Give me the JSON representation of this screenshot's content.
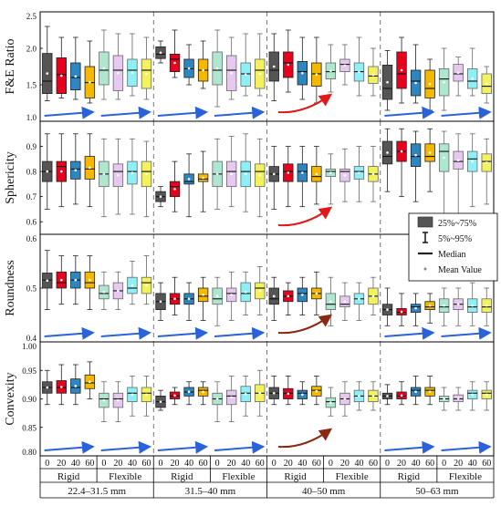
{
  "chart_data": {
    "type": "boxplot",
    "shared_x": {
      "ticks": [
        "0",
        "20",
        "40",
        "60"
      ],
      "groups": [
        "Rigid",
        "Flexible"
      ],
      "size_ranges": [
        "22.4–31.5 mm",
        "31.5–40 mm",
        "40–50 mm",
        "50–63 mm"
      ]
    },
    "colors": {
      "rigid": [
        "#555555",
        "#e8001c",
        "#2e86c1",
        "#f5b800"
      ],
      "flexible": [
        "#aee6cf",
        "#e6c8f0",
        "#8ef0f7",
        "#f2f25e"
      ],
      "trend_blue": "#2a63d9",
      "trend_red": "#e01a1a",
      "trend_brown": "#8b2a12"
    },
    "legend": {
      "items": [
        {
          "label": "25%~75%",
          "symbol": "box"
        },
        {
          "label": "5%~95%",
          "symbol": "whisker"
        },
        {
          "label": "Median",
          "symbol": "line"
        },
        {
          "label": "Mean Value",
          "symbol": "dot"
        }
      ]
    },
    "panels": [
      {
        "ylabel": "F&E Ratio",
        "ylim": [
          1.0,
          2.5
        ],
        "yticks": [
          "1.0",
          "1.5",
          "2.0",
          "2.5"
        ],
        "arrows": [
          "blue",
          "blue",
          "red",
          "blue"
        ],
        "boxes": [
          [
            [
              1.28,
              1.38,
              1.55,
              1.93,
              2.3
            ],
            [
              1.32,
              1.38,
              1.64,
              1.87,
              2.15
            ],
            [
              1.3,
              1.43,
              1.6,
              1.8,
              2.15
            ],
            [
              1.25,
              1.32,
              1.53,
              1.75,
              2.1
            ]
          ],
          [
            [
              1.3,
              1.5,
              1.7,
              1.95,
              2.25
            ],
            [
              1.3,
              1.42,
              1.7,
              1.9,
              2.2
            ],
            [
              1.35,
              1.48,
              1.7,
              1.85,
              2.2
            ],
            [
              1.3,
              1.45,
              1.7,
              1.85,
              2.15
            ]
          ],
          [
            [
              1.8,
              1.86,
              1.92,
              2.02,
              2.1
            ],
            [
              1.6,
              1.68,
              1.85,
              1.92,
              2.25
            ],
            [
              1.5,
              1.6,
              1.72,
              1.85,
              2.05
            ],
            [
              1.45,
              1.55,
              1.7,
              1.85,
              2.1
            ]
          ],
          [
            [
              1.2,
              1.5,
              1.7,
              1.95,
              2.25
            ],
            [
              1.3,
              1.42,
              1.7,
              1.9,
              2.15
            ],
            [
              1.35,
              1.48,
              1.65,
              1.8,
              2.2
            ],
            [
              1.35,
              1.45,
              1.7,
              1.85,
              2.2
            ]
          ],
          [
            [
              1.28,
              1.55,
              1.7,
              1.95,
              2.2
            ],
            [
              1.4,
              1.6,
              1.8,
              1.95,
              2.25
            ],
            [
              1.3,
              1.5,
              1.68,
              1.82,
              2.15
            ],
            [
              1.25,
              1.48,
              1.65,
              1.8,
              2.15
            ]
          ],
          [
            [
              1.4,
              1.58,
              1.68,
              1.8,
              2.05
            ],
            [
              1.5,
              1.68,
              1.78,
              1.85,
              2.05
            ],
            [
              1.35,
              1.55,
              1.68,
              1.8,
              2.15
            ],
            [
              1.35,
              1.52,
              1.62,
              1.75,
              2.0
            ]
          ],
          [
            [
              1.15,
              1.3,
              1.45,
              1.77,
              1.97
            ],
            [
              1.25,
              1.45,
              1.65,
              1.95,
              2.15
            ],
            [
              1.25,
              1.35,
              1.55,
              1.7,
              2.05
            ],
            [
              1.15,
              1.32,
              1.45,
              1.7,
              1.85
            ]
          ],
          [
            [
              1.15,
              1.35,
              1.58,
              1.72,
              2.0
            ],
            [
              1.35,
              1.55,
              1.65,
              1.78,
              1.88
            ],
            [
              1.35,
              1.45,
              1.55,
              1.72,
              2.0
            ],
            [
              1.25,
              1.38,
              1.48,
              1.65,
              1.75
            ]
          ]
        ]
      },
      {
        "ylabel": "Sphericity",
        "ylim": [
          0.55,
          1.0
        ],
        "yticks": [
          "0.6",
          "0.7",
          "0.8",
          "0.9"
        ],
        "arrows": [
          "none",
          "none",
          "red",
          "none"
        ],
        "boxes": [
          [
            [
              0.65,
              0.76,
              0.8,
              0.84,
              0.95
            ],
            [
              0.66,
              0.76,
              0.82,
              0.84,
              0.95
            ],
            [
              0.67,
              0.77,
              0.81,
              0.84,
              0.95
            ],
            [
              0.66,
              0.77,
              0.81,
              0.86,
              0.95
            ]
          ],
          [
            [
              0.62,
              0.74,
              0.79,
              0.84,
              0.93
            ],
            [
              0.63,
              0.74,
              0.8,
              0.83,
              0.93
            ],
            [
              0.63,
              0.75,
              0.8,
              0.84,
              0.93
            ],
            [
              0.62,
              0.74,
              0.8,
              0.84,
              0.92
            ]
          ],
          [
            [
              0.66,
              0.68,
              0.7,
              0.72,
              0.74
            ],
            [
              0.64,
              0.7,
              0.74,
              0.76,
              0.84
            ],
            [
              0.62,
              0.75,
              0.76,
              0.79,
              0.87
            ],
            [
              0.64,
              0.76,
              0.77,
              0.79,
              0.88
            ]
          ],
          [
            [
              0.65,
              0.74,
              0.79,
              0.84,
              0.93
            ],
            [
              0.66,
              0.74,
              0.8,
              0.84,
              0.94
            ],
            [
              0.64,
              0.74,
              0.8,
              0.84,
              0.95
            ],
            [
              0.62,
              0.74,
              0.8,
              0.83,
              0.93
            ]
          ],
          [
            [
              0.65,
              0.76,
              0.79,
              0.82,
              0.9
            ],
            [
              0.66,
              0.76,
              0.8,
              0.83,
              0.9
            ],
            [
              0.66,
              0.76,
              0.8,
              0.83,
              0.9
            ],
            [
              0.67,
              0.76,
              0.78,
              0.82,
              0.9
            ]
          ],
          [
            [
              0.67,
              0.78,
              0.8,
              0.81,
              0.87
            ],
            [
              0.68,
              0.76,
              0.8,
              0.81,
              0.89
            ],
            [
              0.68,
              0.77,
              0.8,
              0.82,
              0.9
            ],
            [
              0.68,
              0.76,
              0.79,
              0.82,
              0.9
            ]
          ],
          [
            [
              0.72,
              0.83,
              0.86,
              0.92,
              0.97
            ],
            [
              0.7,
              0.84,
              0.88,
              0.92,
              0.97
            ],
            [
              0.68,
              0.82,
              0.86,
              0.91,
              0.96
            ],
            [
              0.72,
              0.84,
              0.86,
              0.91,
              0.97
            ]
          ],
          [
            [
              0.62,
              0.8,
              0.88,
              0.91,
              0.96
            ],
            [
              0.62,
              0.81,
              0.84,
              0.88,
              0.95
            ],
            [
              0.66,
              0.8,
              0.85,
              0.88,
              0.95
            ],
            [
              0.67,
              0.8,
              0.84,
              0.87,
              0.93
            ]
          ]
        ]
      },
      {
        "ylabel": "Roundness",
        "ylim": [
          0.4,
          0.6
        ],
        "yticks": [
          "0.4",
          "0.5",
          "0.6"
        ],
        "arrows": [
          "blue",
          "blue",
          "brown",
          "blue"
        ],
        "boxes": [
          [
            [
              0.46,
              0.5,
              0.515,
              0.528,
              0.57
            ],
            [
              0.47,
              0.5,
              0.51,
              0.53,
              0.56
            ],
            [
              0.47,
              0.5,
              0.515,
              0.53,
              0.56
            ],
            [
              0.46,
              0.5,
              0.51,
              0.53,
              0.56
            ]
          ],
          [
            [
              0.46,
              0.48,
              0.49,
              0.505,
              0.53
            ],
            [
              0.46,
              0.48,
              0.495,
              0.51,
              0.53
            ],
            [
              0.47,
              0.49,
              0.5,
              0.52,
              0.55
            ],
            [
              0.47,
              0.49,
              0.51,
              0.52,
              0.56
            ]
          ],
          [
            [
              0.44,
              0.46,
              0.475,
              0.49,
              0.51
            ],
            [
              0.45,
              0.47,
              0.48,
              0.49,
              0.52
            ],
            [
              0.44,
              0.47,
              0.48,
              0.49,
              0.51
            ],
            [
              0.44,
              0.475,
              0.485,
              0.5,
              0.52
            ]
          ],
          [
            [
              0.43,
              0.47,
              0.48,
              0.5,
              0.52
            ],
            [
              0.44,
              0.475,
              0.49,
              0.5,
              0.53
            ],
            [
              0.45,
              0.475,
              0.49,
              0.51,
              0.53
            ],
            [
              0.45,
              0.48,
              0.5,
              0.51,
              0.54
            ]
          ],
          [
            [
              0.44,
              0.47,
              0.48,
              0.5,
              0.52
            ],
            [
              0.45,
              0.475,
              0.485,
              0.495,
              0.51
            ],
            [
              0.45,
              0.475,
              0.49,
              0.5,
              0.52
            ],
            [
              0.45,
              0.48,
              0.49,
              0.5,
              0.53
            ]
          ],
          [
            [
              0.43,
              0.46,
              0.47,
              0.49,
              0.52
            ],
            [
              0.44,
              0.465,
              0.47,
              0.485,
              0.51
            ],
            [
              0.44,
              0.47,
              0.48,
              0.49,
              0.51
            ],
            [
              0.45,
              0.47,
              0.485,
              0.5,
              0.52
            ]
          ],
          [
            [
              0.43,
              0.45,
              0.46,
              0.47,
              0.5
            ],
            [
              0.43,
              0.45,
              0.455,
              0.462,
              0.49
            ],
            [
              0.43,
              0.455,
              0.465,
              0.47,
              0.49
            ],
            [
              0.435,
              0.46,
              0.465,
              0.475,
              0.49
            ]
          ],
          [
            [
              0.43,
              0.455,
              0.465,
              0.48,
              0.5
            ],
            [
              0.43,
              0.46,
              0.47,
              0.48,
              0.5
            ],
            [
              0.43,
              0.455,
              0.465,
              0.48,
              0.51
            ],
            [
              0.43,
              0.455,
              0.465,
              0.48,
              0.5
            ]
          ]
        ]
      },
      {
        "ylabel": "Convexity",
        "ylim": [
          0.8,
          1.0
        ],
        "yticks": [
          "0.80",
          "0.85",
          "0.90",
          "0.95",
          "1.00"
        ],
        "arrows": [
          "blue",
          "blue",
          "brown",
          "blue"
        ],
        "boxes": [
          [
            [
              0.89,
              0.91,
              0.92,
              0.93,
              0.95
            ],
            [
              0.89,
              0.91,
              0.92,
              0.932,
              0.96
            ],
            [
              0.89,
              0.91,
              0.92,
              0.935,
              0.96
            ],
            [
              0.9,
              0.918,
              0.928,
              0.942,
              0.965
            ]
          ],
          [
            [
              0.86,
              0.885,
              0.9,
              0.91,
              0.93
            ],
            [
              0.86,
              0.885,
              0.9,
              0.91,
              0.93
            ],
            [
              0.87,
              0.895,
              0.91,
              0.92,
              0.94
            ],
            [
              0.87,
              0.895,
              0.91,
              0.92,
              0.94
            ]
          ],
          [
            [
              0.88,
              0.885,
              0.895,
              0.905,
              0.915
            ],
            [
              0.89,
              0.9,
              0.905,
              0.912,
              0.92
            ],
            [
              0.89,
              0.905,
              0.912,
              0.92,
              0.93
            ],
            [
              0.89,
              0.905,
              0.915,
              0.92,
              0.93
            ]
          ],
          [
            [
              0.86,
              0.89,
              0.9,
              0.91,
              0.93
            ],
            [
              0.86,
              0.89,
              0.905,
              0.915,
              0.94
            ],
            [
              0.87,
              0.895,
              0.91,
              0.922,
              0.94
            ],
            [
              0.87,
              0.895,
              0.91,
              0.925,
              0.95
            ]
          ],
          [
            [
              0.89,
              0.9,
              0.91,
              0.92,
              0.94
            ],
            [
              0.89,
              0.9,
              0.91,
              0.918,
              0.94
            ],
            [
              0.89,
              0.9,
              0.91,
              0.915,
              0.93
            ],
            [
              0.89,
              0.905,
              0.915,
              0.922,
              0.94
            ]
          ],
          [
            [
              0.87,
              0.885,
              0.895,
              0.902,
              0.92
            ],
            [
              0.87,
              0.89,
              0.9,
              0.91,
              0.93
            ],
            [
              0.88,
              0.895,
              0.905,
              0.915,
              0.93
            ],
            [
              0.88,
              0.895,
              0.905,
              0.915,
              0.93
            ]
          ],
          [
            [
              0.89,
              0.9,
              0.905,
              0.91,
              0.925
            ],
            [
              0.89,
              0.9,
              0.905,
              0.912,
              0.93
            ],
            [
              0.89,
              0.905,
              0.915,
              0.92,
              0.94
            ],
            [
              0.89,
              0.905,
              0.915,
              0.92,
              0.94
            ]
          ],
          [
            [
              0.88,
              0.895,
              0.9,
              0.905,
              0.92
            ],
            [
              0.88,
              0.895,
              0.9,
              0.907,
              0.92
            ],
            [
              0.88,
              0.9,
              0.91,
              0.915,
              0.93
            ],
            [
              0.88,
              0.9,
              0.91,
              0.915,
              0.93
            ]
          ]
        ]
      }
    ]
  }
}
